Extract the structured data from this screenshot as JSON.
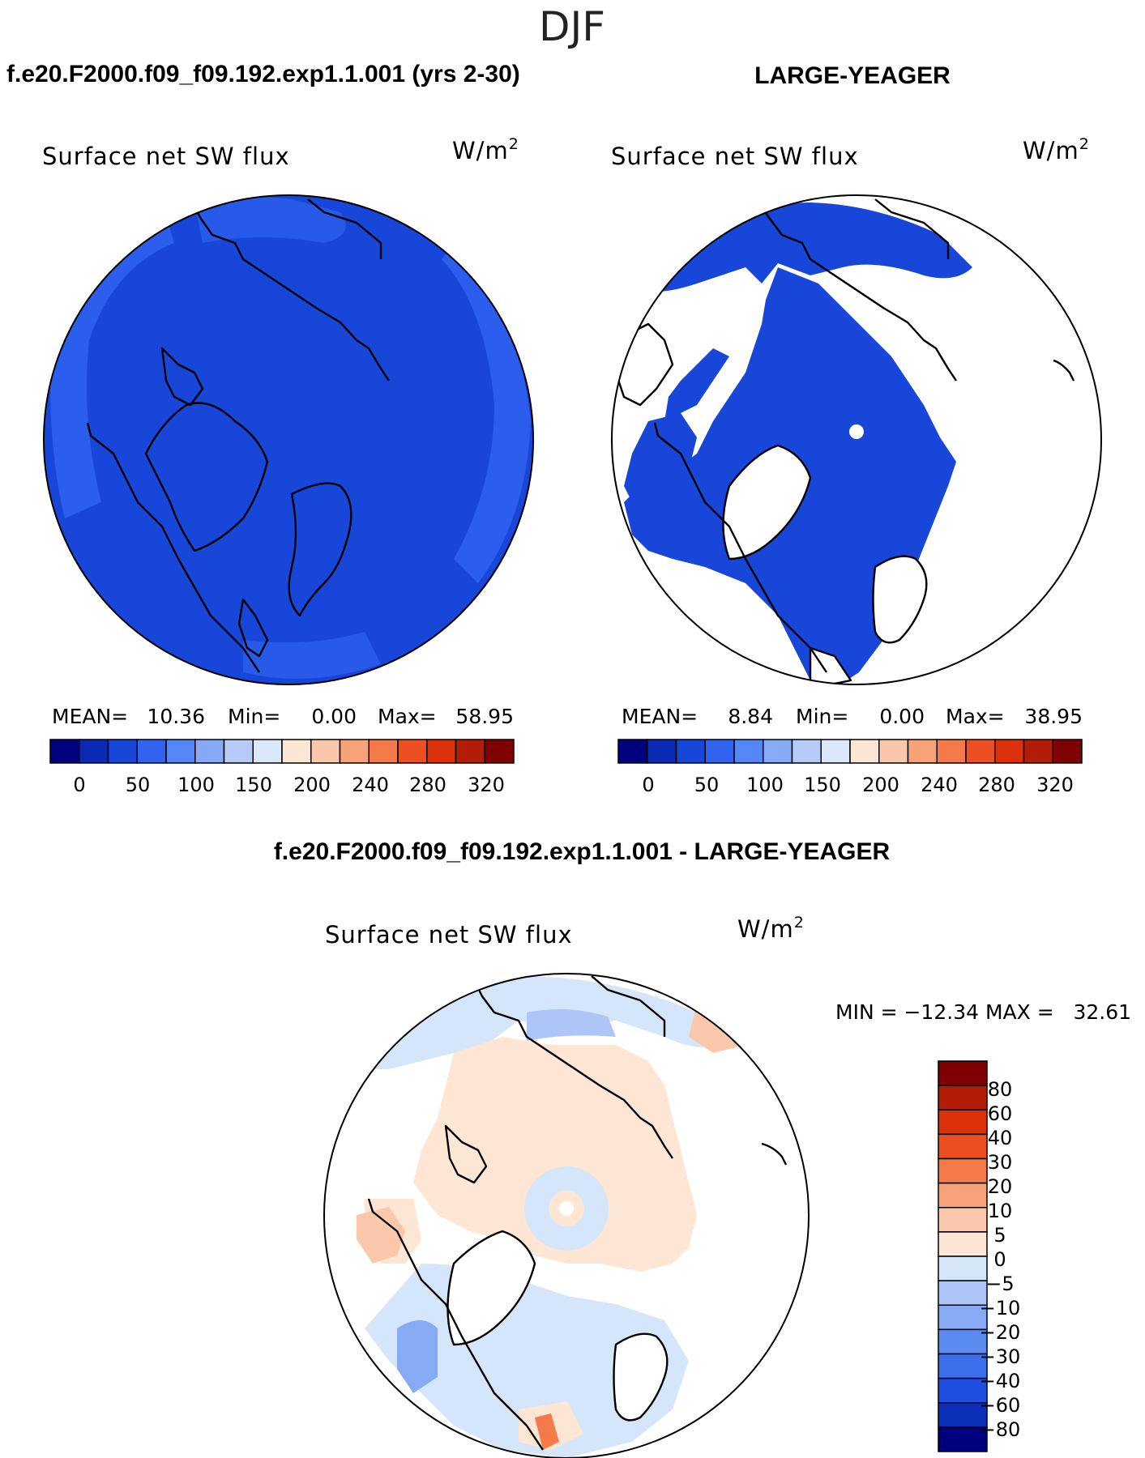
{
  "figure_title": "DJF",
  "palettes": {
    "absolute": [
      "#00007f",
      "#0a2ab4",
      "#1746d8",
      "#2f63f0",
      "#5486f6",
      "#86aaf7",
      "#b5cbf8",
      "#dbe8fb",
      "#fde6d4",
      "#fbc8ab",
      "#f8a27a",
      "#f47a49",
      "#ec4f22",
      "#dd310c",
      "#b21d06",
      "#7f0000"
    ],
    "difference": [
      "#00007f",
      "#0b2fb8",
      "#1f4fe0",
      "#3b6fec",
      "#5c8bf0",
      "#86aaf4",
      "#aec6f7",
      "#d6e6fa",
      "#fde6d4",
      "#fbc8ab",
      "#f8a27a",
      "#f47a49",
      "#ec4f22",
      "#dd310c",
      "#b21d06",
      "#7f0000"
    ]
  },
  "chart_data": [
    {
      "type": "heatmap",
      "projection": "north-polar-stereographic",
      "case_title": "f.e20.F2000.f09_f09.192.exp1.1.001 (yrs 2-30)",
      "variable": "Surface net SW flux",
      "units": "W/m",
      "units_sup": "2",
      "stats": {
        "mean_label": "MEAN=",
        "mean": "10.36",
        "min_label": "Min=",
        "min": "0.00",
        "max_label": "Max=",
        "max": "58.95"
      },
      "colorbar": {
        "orientation": "horizontal",
        "ticks": [
          "0",
          "50",
          "100",
          "150",
          "200",
          "240",
          "280",
          "320"
        ],
        "levels": [
          0,
          25,
          50,
          75,
          100,
          125,
          150,
          175,
          200,
          220,
          240,
          260,
          280,
          300,
          320
        ]
      }
    },
    {
      "type": "heatmap",
      "projection": "north-polar-stereographic",
      "case_title": "LARGE-YEAGER",
      "variable": "Surface net SW flux",
      "units": "W/m",
      "units_sup": "2",
      "stats": {
        "mean_label": "MEAN=",
        "mean": "8.84",
        "min_label": "Min=",
        "min": "0.00",
        "max_label": "Max=",
        "max": "38.95"
      },
      "colorbar": {
        "orientation": "horizontal",
        "ticks": [
          "0",
          "50",
          "100",
          "150",
          "200",
          "240",
          "280",
          "320"
        ],
        "levels": [
          0,
          25,
          50,
          75,
          100,
          125,
          150,
          175,
          200,
          220,
          240,
          260,
          280,
          300,
          320
        ]
      }
    },
    {
      "type": "heatmap",
      "projection": "north-polar-stereographic",
      "case_title": "f.e20.F2000.f09_f09.192.exp1.1.001 - LARGE-YEAGER",
      "variable": "Surface net SW flux",
      "units": "W/m",
      "units_sup": "2",
      "stats_text": "MIN = −12.34 MAX =   32.61",
      "colorbar": {
        "orientation": "vertical",
        "ticks": [
          "80",
          "60",
          "40",
          "30",
          "20",
          "10",
          "5",
          "0",
          "−5",
          "−10",
          "−20",
          "−30",
          "−40",
          "−60",
          "−80"
        ]
      }
    }
  ]
}
